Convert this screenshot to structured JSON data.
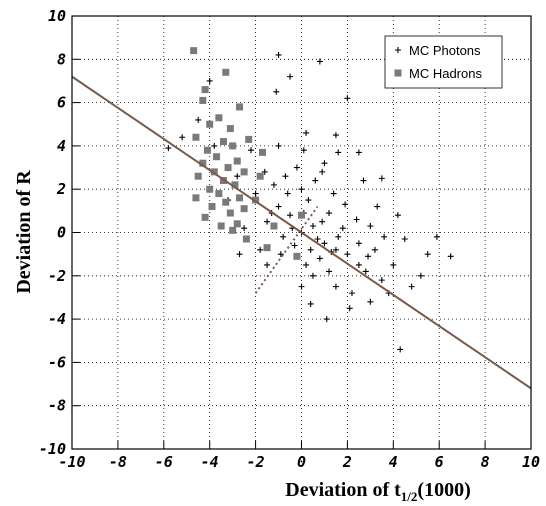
{
  "chart_data": {
    "type": "scatter",
    "x_label": {
      "text": "Deviation of t",
      "subscript": "1/2",
      "suffix": "(1000)"
    },
    "y_label": "Deviation of R",
    "xlim": [
      -10,
      10
    ],
    "ylim": [
      -10,
      10
    ],
    "xticks": [
      -10,
      -8,
      -6,
      -4,
      -2,
      0,
      2,
      4,
      6,
      8,
      10
    ],
    "yticks": [
      -10,
      -8,
      -6,
      -4,
      -2,
      0,
      2,
      4,
      6,
      8,
      10
    ],
    "grid": true,
    "legend": "top-right",
    "series": [
      {
        "name": "MC Photons",
        "color": "#000000",
        "marker": "plus",
        "x": [
          0,
          0.5,
          -0.5,
          1,
          -1,
          1.5,
          -1.5,
          0.3,
          0.8,
          -0.3,
          2,
          2.5,
          -2,
          1.2,
          -0.8,
          0.2,
          1.8,
          -1.2,
          0.6,
          2.8,
          3.2,
          3.5,
          -2.5,
          -0.2,
          1,
          4,
          4.5,
          -1.8,
          0,
          0.4,
          1.5,
          2.2,
          3,
          4.3,
          5.2,
          5.5,
          6.5,
          5.9,
          -2.2,
          -1,
          0.2,
          1.5,
          -1.1,
          -0.5,
          -1,
          0.8,
          2,
          1.2,
          -0.6,
          0.9,
          -0.4,
          0.1,
          0.7,
          -1.3,
          1.6,
          2.4,
          3,
          3.3,
          4.2,
          2.7,
          1.9,
          -2.8,
          -3.2,
          -4.5,
          -5.2,
          -5.8,
          -4,
          -3.8,
          0,
          -0.7,
          1.4,
          2.5,
          3.8,
          3.6,
          4.8,
          2.1,
          1.1,
          -1.5,
          -2.7,
          0.5,
          0.9,
          1.6,
          3.5,
          2.5,
          0.1,
          -0.9,
          1.3,
          2.9,
          -1.6,
          0.4
        ],
        "values": [
          0,
          0.3,
          0.8,
          -0.5,
          1.2,
          -0.8,
          0.5,
          1.5,
          -1.2,
          -0.6,
          -1,
          -0.5,
          1.8,
          0.9,
          -0.2,
          -1.5,
          0.2,
          2.2,
          2.4,
          -1.8,
          -0.8,
          -2.2,
          0.2,
          3,
          3.2,
          -1.5,
          -0.3,
          -0.8,
          -2.5,
          -3.3,
          -2.5,
          -2.8,
          -3.2,
          -5.4,
          -2,
          -1,
          -1.1,
          -0.2,
          3.8,
          4,
          4.6,
          4.5,
          6.5,
          7.2,
          8.2,
          7.9,
          6.2,
          -1.8,
          1.8,
          0.5,
          0.2,
          0.9,
          -0.3,
          0.9,
          -0.2,
          0.6,
          0.3,
          1.2,
          0.8,
          2.4,
          1.3,
          2.6,
          1.5,
          5.2,
          4.4,
          3.9,
          7,
          4,
          2,
          2.6,
          1.8,
          -1.5,
          -2.8,
          -0.2,
          -2.5,
          -3.5,
          -4,
          -1.5,
          -1,
          -2,
          2.8,
          3.7,
          2.5,
          3.7,
          3.8,
          -1,
          -0.9,
          -1.1,
          2.8,
          -0.8
        ]
      },
      {
        "name": "MC Hadrons",
        "color": "#7a7a7a",
        "marker": "square",
        "x": [
          -4.7,
          -3.3,
          -4.2,
          -4.3,
          -2.7,
          -3.6,
          -4,
          -3.1,
          -4.6,
          -3.4,
          -2.3,
          -3,
          -4.1,
          -3.7,
          -4.3,
          -2.8,
          -3.2,
          -3.8,
          -2.5,
          -4.5,
          -3.4,
          -2.9,
          -4,
          -3.6,
          -2.7,
          -3.3,
          -4.6,
          -3.9,
          -2.5,
          -3.1,
          -4.2,
          -2.8,
          -3.5,
          -1.2,
          -1.5,
          -2.4,
          -3,
          -1.7,
          -0.2,
          0,
          -2,
          -1.8
        ],
        "values": [
          8.4,
          7.4,
          6.6,
          6.1,
          5.8,
          5.3,
          5,
          4.8,
          4.4,
          4.2,
          4.3,
          4,
          3.8,
          3.5,
          3.2,
          3.3,
          3,
          2.8,
          2.8,
          2.6,
          2.4,
          2.2,
          2,
          1.8,
          1.6,
          1.4,
          1.6,
          1.2,
          1.1,
          0.9,
          0.7,
          0.4,
          0.3,
          0.3,
          -0.7,
          -0.3,
          0.1,
          3.7,
          -1.1,
          0.8,
          1.5,
          2.6
        ]
      }
    ],
    "fit_lines": [
      {
        "x": [
          -10,
          10
        ],
        "y": [
          7.2,
          -7.2
        ],
        "color": "#7a5a4a",
        "dash": "solid"
      },
      {
        "x": [
          -2,
          0.7
        ],
        "y": [
          -2.8,
          1.2
        ],
        "color": "#7a5a4a",
        "dash": "dotted"
      }
    ]
  }
}
